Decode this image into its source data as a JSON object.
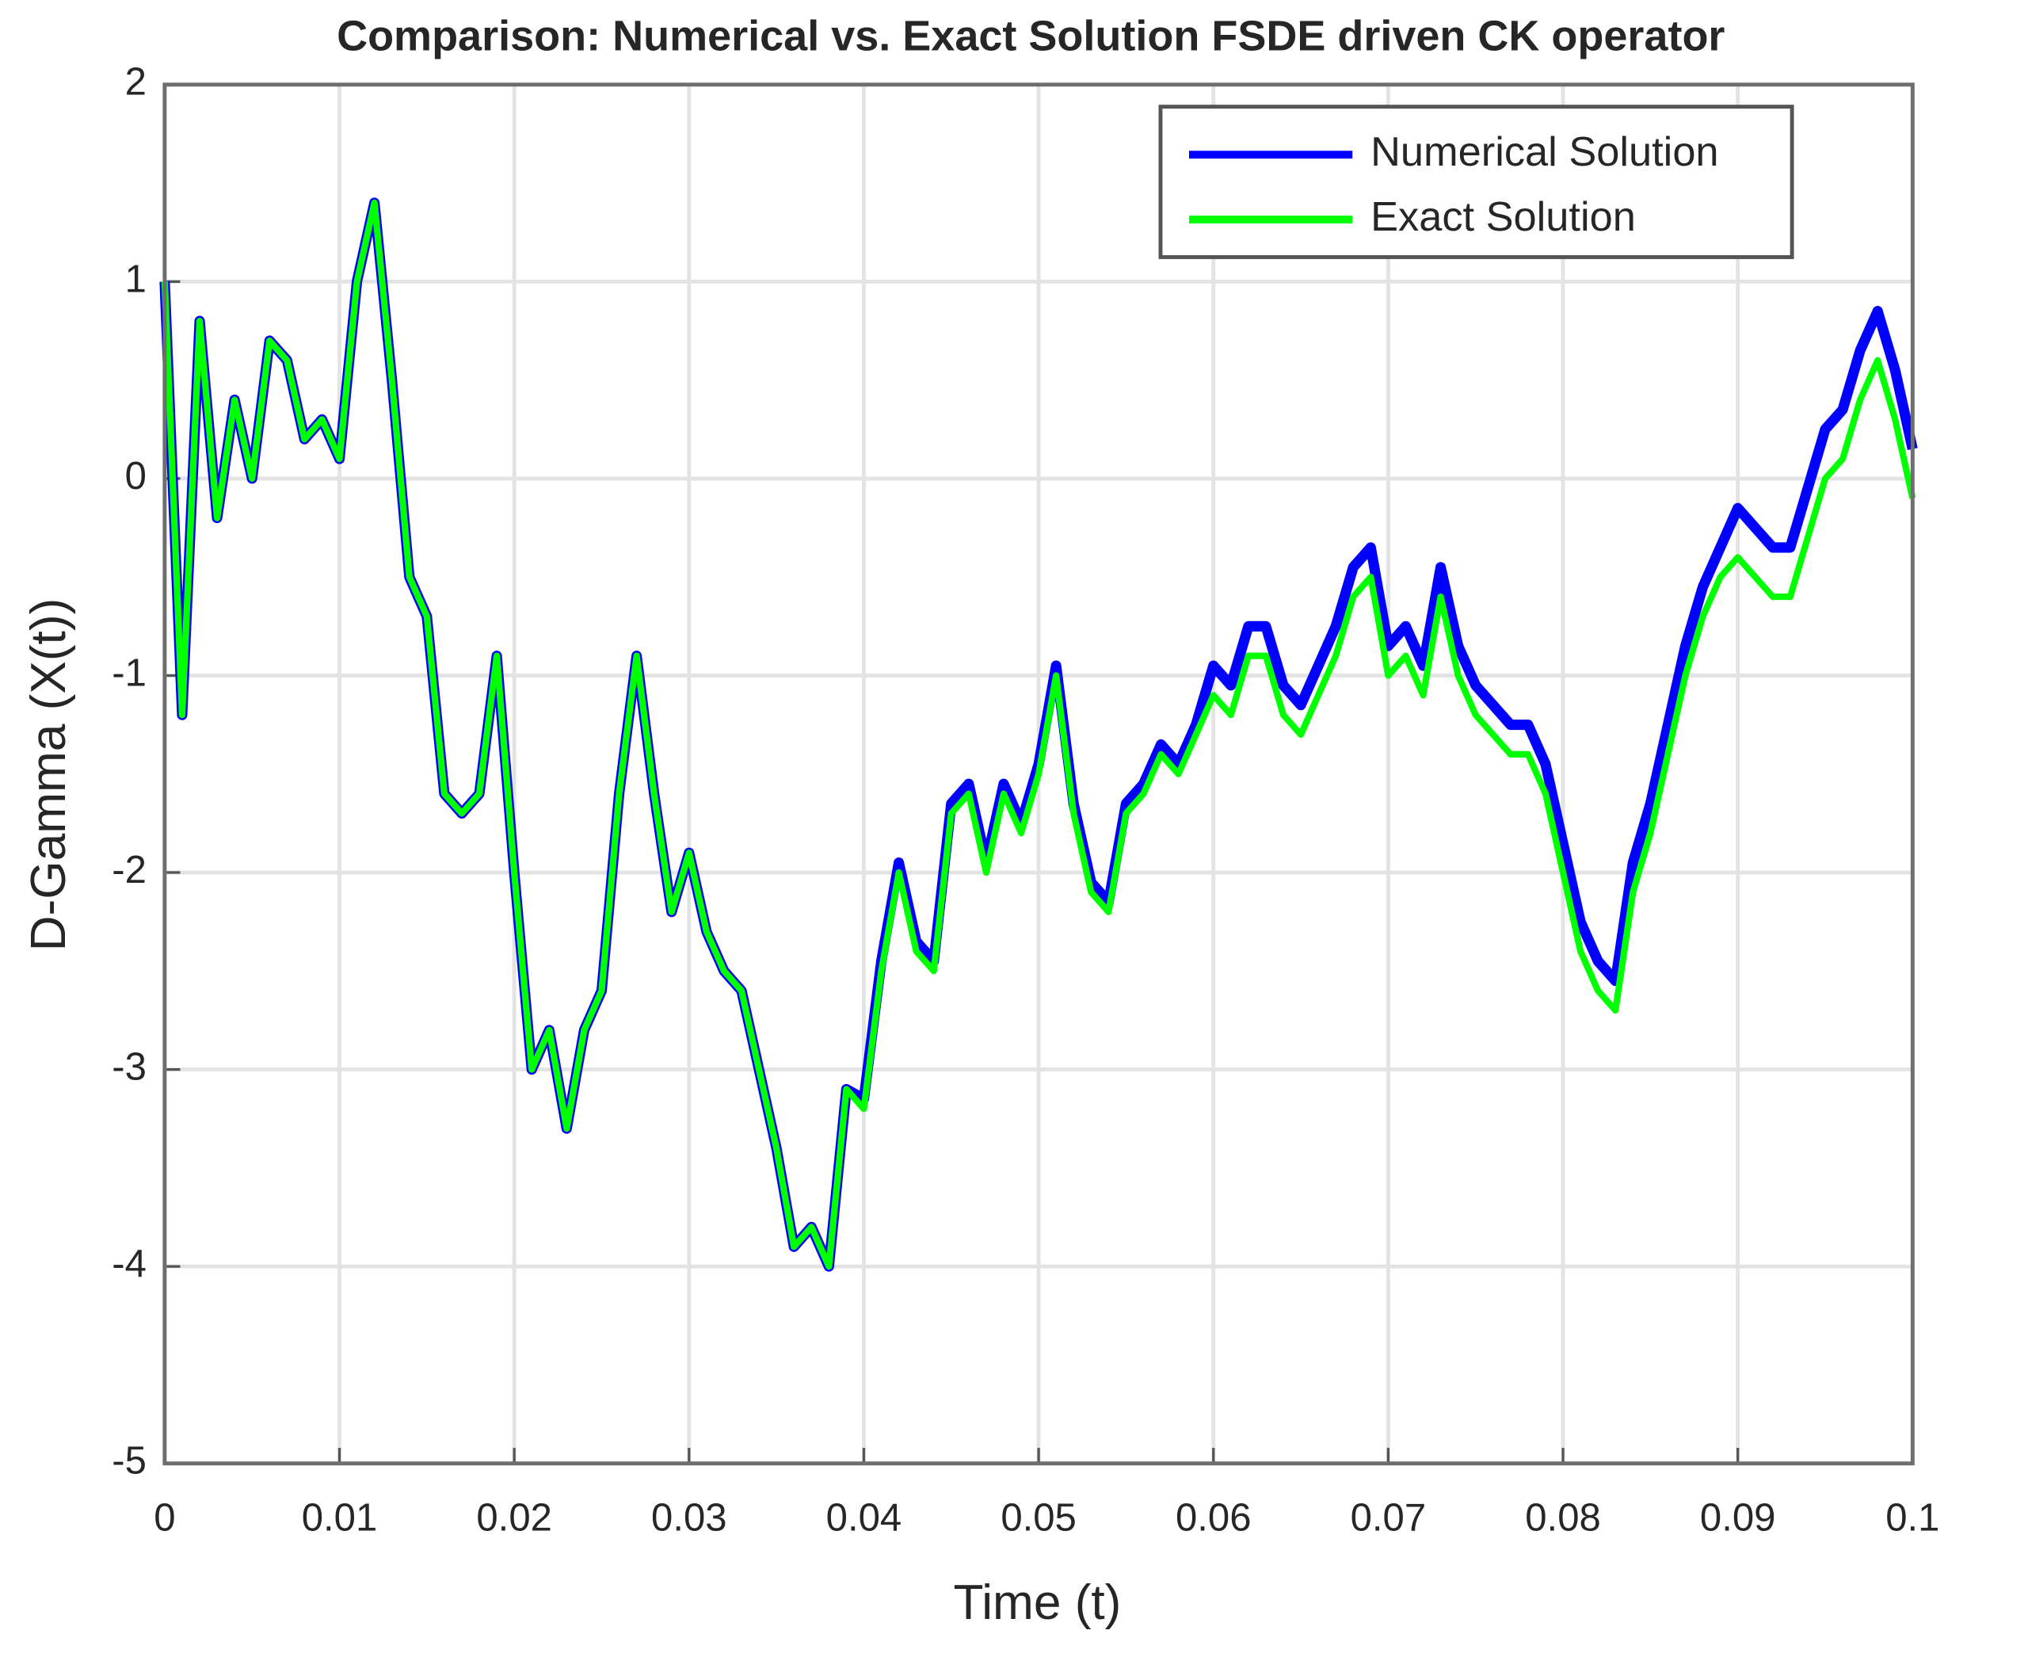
{
  "chart_data": {
    "type": "line",
    "title": "Comparison: Numerical vs. Exact Solution FSDE driven CK operator",
    "x_label": "Time (t)",
    "y_label": "D-Gamma (X(t))",
    "x": [
      0,
      0.001,
      0.002,
      0.003,
      0.004,
      0.005,
      0.006,
      0.007,
      0.008,
      0.009,
      0.01,
      0.011,
      0.012,
      0.013,
      0.014,
      0.015,
      0.016,
      0.017,
      0.018,
      0.019,
      0.02,
      0.021,
      0.022,
      0.023,
      0.024,
      0.025,
      0.026,
      0.027,
      0.028,
      0.029,
      0.03,
      0.031,
      0.032,
      0.033,
      0.034,
      0.035,
      0.036,
      0.037,
      0.038,
      0.039,
      0.04,
      0.041,
      0.042,
      0.043,
      0.044,
      0.045,
      0.046,
      0.047,
      0.048,
      0.049,
      0.05,
      0.051,
      0.052,
      0.053,
      0.054,
      0.055,
      0.056,
      0.057,
      0.058,
      0.059,
      0.06,
      0.061,
      0.062,
      0.063,
      0.064,
      0.065,
      0.066,
      0.067,
      0.068,
      0.069,
      0.07,
      0.071,
      0.072,
      0.073,
      0.074,
      0.075,
      0.076,
      0.077,
      0.078,
      0.079,
      0.08,
      0.081,
      0.082,
      0.083,
      0.084,
      0.085,
      0.086,
      0.087,
      0.088,
      0.089,
      0.09,
      0.091,
      0.092,
      0.093,
      0.094,
      0.095,
      0.096,
      0.097,
      0.098,
      0.099,
      0.1
    ],
    "series": [
      {
        "name": "Numerical Solution",
        "color": "#0000ff",
        "values": [
          1.0,
          -1.2,
          0.8,
          -0.2,
          0.4,
          0.0,
          0.7,
          0.6,
          0.2,
          0.3,
          0.1,
          1.0,
          1.4,
          0.5,
          -0.5,
          -0.7,
          -1.6,
          -1.7,
          -1.6,
          -0.9,
          -2.0,
          -3.0,
          -2.8,
          -3.3,
          -2.8,
          -2.6,
          -1.6,
          -0.9,
          -1.6,
          -2.2,
          -1.9,
          -2.3,
          -2.5,
          -2.6,
          -3.0,
          -3.4,
          -3.9,
          -3.8,
          -4.0,
          -3.1,
          -3.15,
          -2.45,
          -1.95,
          -2.35,
          -2.45,
          -1.65,
          -1.55,
          -1.95,
          -1.55,
          -1.75,
          -1.45,
          -0.95,
          -1.65,
          -2.05,
          -2.15,
          -1.65,
          -1.55,
          -1.35,
          -1.45,
          -1.25,
          -0.95,
          -1.05,
          -0.75,
          -0.75,
          -1.05,
          -1.15,
          -0.95,
          -0.75,
          -0.45,
          -0.35,
          -0.85,
          -0.75,
          -0.95,
          -0.45,
          -0.85,
          -1.05,
          -1.15,
          -1.25,
          -1.25,
          -1.45,
          -1.85,
          -2.25,
          -2.45,
          -2.55,
          -1.95,
          -1.65,
          -1.25,
          -0.85,
          -0.55,
          -0.35,
          -0.15,
          -0.25,
          -0.35,
          -0.35,
          -0.05,
          0.25,
          0.35,
          0.65,
          0.85,
          0.55,
          0.15
        ]
      },
      {
        "name": "Exact Solution",
        "color": "#00ff00",
        "values": [
          1.0,
          -1.2,
          0.8,
          -0.2,
          0.4,
          0.0,
          0.7,
          0.6,
          0.2,
          0.3,
          0.1,
          1.0,
          1.4,
          0.5,
          -0.5,
          -0.7,
          -1.6,
          -1.7,
          -1.6,
          -0.9,
          -2.0,
          -3.0,
          -2.8,
          -3.3,
          -2.8,
          -2.6,
          -1.6,
          -0.9,
          -1.6,
          -2.2,
          -1.9,
          -2.3,
          -2.5,
          -2.6,
          -3.0,
          -3.4,
          -3.9,
          -3.8,
          -4.0,
          -3.1,
          -3.2,
          -2.5,
          -2.0,
          -2.4,
          -2.5,
          -1.7,
          -1.6,
          -2.0,
          -1.6,
          -1.8,
          -1.5,
          -1.0,
          -1.7,
          -2.1,
          -2.2,
          -1.7,
          -1.6,
          -1.4,
          -1.5,
          -1.3,
          -1.1,
          -1.2,
          -0.9,
          -0.9,
          -1.2,
          -1.3,
          -1.1,
          -0.9,
          -0.6,
          -0.5,
          -1.0,
          -0.9,
          -1.1,
          -0.6,
          -1.0,
          -1.2,
          -1.3,
          -1.4,
          -1.4,
          -1.6,
          -2.0,
          -2.4,
          -2.6,
          -2.7,
          -2.1,
          -1.8,
          -1.4,
          -1.0,
          -0.7,
          -0.5,
          -0.4,
          -0.5,
          -0.6,
          -0.6,
          -0.3,
          0.0,
          0.1,
          0.4,
          0.6,
          0.3,
          -0.1
        ]
      }
    ],
    "xlim": [
      0,
      0.1
    ],
    "xticks": [
      0,
      0.01,
      0.02,
      0.03,
      0.04,
      0.05,
      0.06,
      0.07,
      0.08,
      0.09,
      0.1
    ],
    "ylim": [
      -5,
      2
    ],
    "yticks": [
      -5,
      -4,
      -3,
      -2,
      -1,
      0,
      1,
      2
    ],
    "grid": true,
    "legend": "upper right"
  }
}
